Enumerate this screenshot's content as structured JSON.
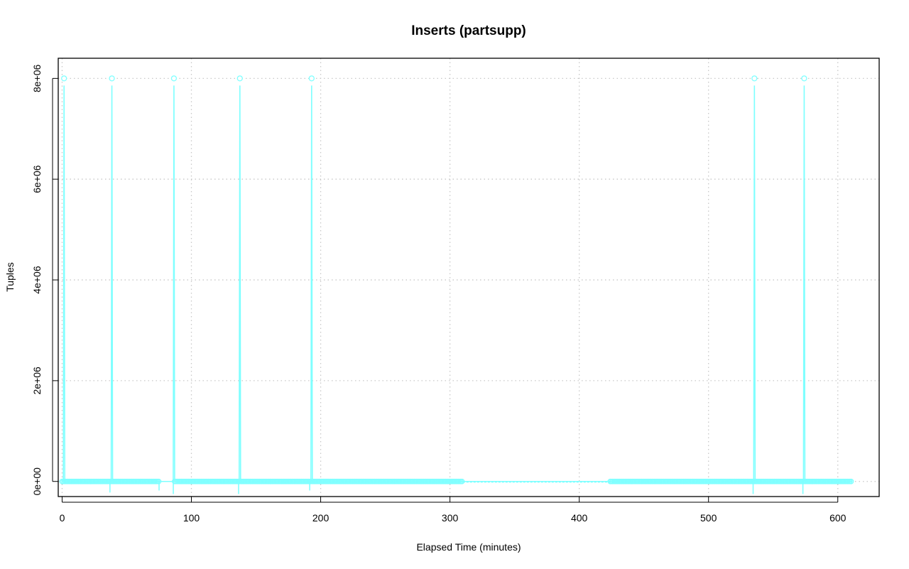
{
  "chart_data": {
    "type": "line",
    "title": "Inserts (partsupp)",
    "xlabel": "Elapsed Time (minutes)",
    "ylabel": "Tuples",
    "xlim": [
      -3,
      632
    ],
    "ylim": [
      -300000,
      8400000
    ],
    "x_ticks": [
      0,
      100,
      200,
      300,
      400,
      500,
      600
    ],
    "x_tick_labels": [
      "0",
      "100",
      "200",
      "300",
      "400",
      "500",
      "600"
    ],
    "y_ticks": [
      0,
      2000000,
      4000000,
      6000000,
      8000000
    ],
    "y_tick_labels": [
      "0e+00",
      "2e+06",
      "4e+06",
      "6e+06",
      "8e+06"
    ],
    "grid": true,
    "series": [
      {
        "color": "#7fffff",
        "spike_x": [
          1.5,
          38.5,
          86.5,
          137.5,
          193,
          535.5,
          574
        ],
        "spike_y": 8000000,
        "baseline_y": 0,
        "dense_ranges": [
          [
            0,
            75
          ],
          [
            87,
            310
          ],
          [
            424,
            611
          ]
        ],
        "sparse_range": [
          310,
          424
        ],
        "dips": [
          {
            "x": 37,
            "y": -220000
          },
          {
            "x": 75,
            "y": -180000
          },
          {
            "x": 86,
            "y": -250000
          },
          {
            "x": 136.5,
            "y": -250000
          },
          {
            "x": 191.5,
            "y": -180000
          },
          {
            "x": 534.5,
            "y": -250000
          },
          {
            "x": 573,
            "y": -250000
          }
        ]
      }
    ]
  }
}
